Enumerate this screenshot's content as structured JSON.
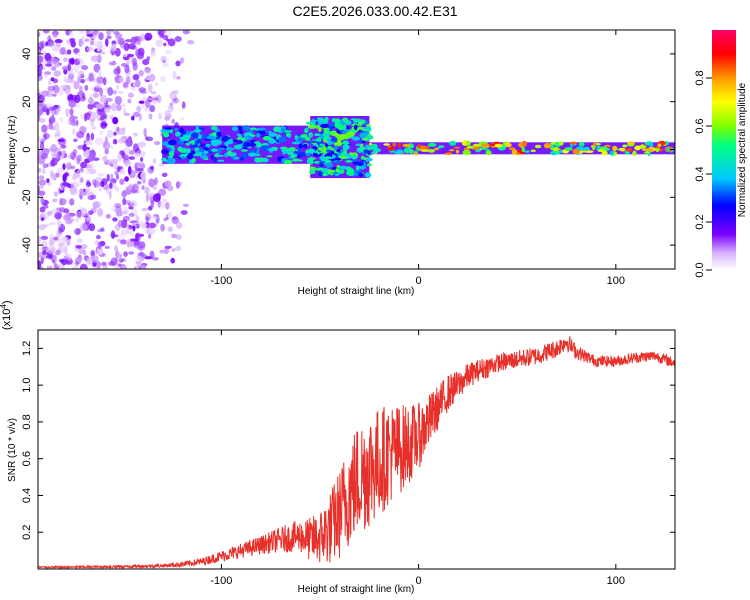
{
  "title": "C2E5.2026.033.00.42.E31",
  "chart_data": [
    {
      "type": "heatmap",
      "name": "spectrogram",
      "xlabel": "Height of straight line (km)",
      "ylabel": "Frequency (Hz)",
      "xlim": [
        -193,
        130
      ],
      "ylim": [
        -50,
        50
      ],
      "xticks": [
        -100,
        0,
        100
      ],
      "yticks": [
        -40,
        -20,
        0,
        20,
        40
      ],
      "colorbar": {
        "label": "Normalized spectral amplitude",
        "range": [
          0,
          1
        ],
        "ticks": [
          "0.0",
          "0.2",
          "0.4",
          "0.6",
          "0.8"
        ],
        "tick_values": [
          0,
          0.2,
          0.4,
          0.6,
          0.8
        ],
        "colors": [
          "#ffffff",
          "#d9b3ff",
          "#7a00ff",
          "#0000ff",
          "#00c8ff",
          "#00ff80",
          "#80ff00",
          "#ffff00",
          "#ff9900",
          "#ff0000",
          "#ff0066"
        ]
      },
      "regions": [
        {
          "x": [
            -193,
            -115
          ],
          "freq": [
            -50,
            50
          ],
          "amplitude": 0.08,
          "description_key": "noise"
        },
        {
          "x": [
            -130,
            -55
          ],
          "freq": [
            -6,
            10
          ],
          "amplitude": 0.45
        },
        {
          "x": [
            -55,
            -25
          ],
          "freq": [
            -12,
            14
          ],
          "amplitude": 0.5
        },
        {
          "x": [
            -25,
            130
          ],
          "freq": [
            -2,
            3
          ],
          "amplitude": 0.75
        }
      ]
    },
    {
      "type": "line",
      "name": "snr",
      "xlabel": "Height of straight line (km)",
      "ylabel": "SNR (10 * v/v)",
      "y_multiplier": "(x10",
      "y_multiplier_exp": "4",
      "y_multiplier_close": ")",
      "xlim": [
        -193,
        130
      ],
      "ylim": [
        0,
        1.3
      ],
      "xticks": [
        -100,
        0,
        100
      ],
      "yticks": [
        0.2,
        0.4,
        0.6,
        0.8,
        1.0,
        1.2
      ],
      "ytick_labels": [
        "0.2",
        "0.4",
        "0.6",
        "0.8",
        "1.0",
        "1.2"
      ],
      "color": "#e8302a",
      "x": [
        -193,
        -180,
        -160,
        -140,
        -130,
        -120,
        -110,
        -100,
        -90,
        -80,
        -70,
        -60,
        -55,
        -50,
        -45,
        -40,
        -35,
        -30,
        -25,
        -20,
        -15,
        -10,
        -5,
        0,
        5,
        10,
        15,
        20,
        25,
        30,
        35,
        40,
        50,
        60,
        70,
        75,
        80,
        90,
        100,
        110,
        120,
        130
      ],
      "y": [
        0.01,
        0.01,
        0.012,
        0.015,
        0.018,
        0.025,
        0.04,
        0.07,
        0.1,
        0.13,
        0.16,
        0.18,
        0.16,
        0.17,
        0.22,
        0.3,
        0.42,
        0.5,
        0.55,
        0.58,
        0.63,
        0.65,
        0.68,
        0.72,
        0.8,
        0.88,
        0.96,
        1.0,
        1.05,
        1.08,
        1.1,
        1.12,
        1.14,
        1.16,
        1.2,
        1.24,
        1.18,
        1.13,
        1.13,
        1.15,
        1.16,
        1.12
      ],
      "noise_amplitude": [
        0.005,
        0.005,
        0.006,
        0.008,
        0.01,
        0.015,
        0.02,
        0.03,
        0.04,
        0.05,
        0.07,
        0.09,
        0.12,
        0.15,
        0.2,
        0.25,
        0.3,
        0.32,
        0.33,
        0.3,
        0.28,
        0.25,
        0.22,
        0.18,
        0.15,
        0.12,
        0.1,
        0.08,
        0.07,
        0.06,
        0.06,
        0.05,
        0.05,
        0.05,
        0.05,
        0.05,
        0.04,
        0.03,
        0.03,
        0.03,
        0.03,
        0.03
      ]
    }
  ]
}
